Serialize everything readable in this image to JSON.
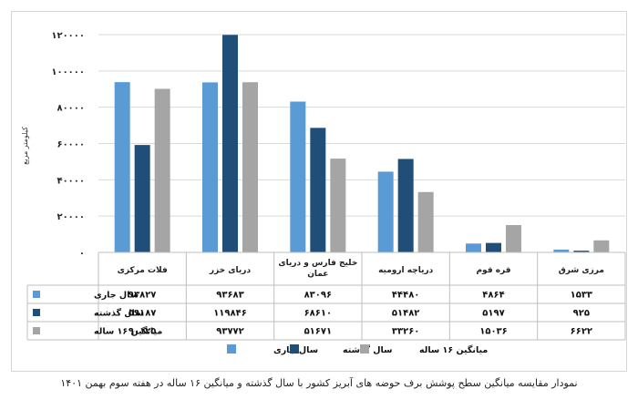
{
  "chart_data": {
    "type": "bar",
    "title": "",
    "ylabel": "کیلومتر مربع",
    "xlabel": "",
    "ylim": [
      0,
      120000
    ],
    "y_ticks": [
      0,
      20000,
      40000,
      60000,
      80000,
      100000,
      120000
    ],
    "y_tick_labels": [
      "۰",
      "۲۰۰۰۰",
      "۴۰۰۰۰",
      "۶۰۰۰۰",
      "۸۰۰۰۰",
      "۱۰۰۰۰۰",
      "۱۲۰۰۰۰"
    ],
    "categories": [
      "مرزی شرق",
      "قره قوم",
      "دریاچه ارومیه",
      "خلیج فارس و دریای عمان",
      "دریای خزر",
      "فلات مرکزی"
    ],
    "category_lines": [
      [
        "مرزی شرق"
      ],
      [
        "قره قوم"
      ],
      [
        "دریاچه ارومیه"
      ],
      [
        "خلیج فارس و دریای",
        "عمان"
      ],
      [
        "دریای خزر"
      ],
      [
        "فلات مرکزی"
      ]
    ],
    "series": [
      {
        "name": "سال جاری",
        "color": "#5b9bd5",
        "values": [
          1533,
          4864,
          44480,
          83096,
          93683,
          93827
        ],
        "labels": [
          "۱۵۳۳",
          "۴۸۶۴",
          "۴۴۴۸۰",
          "۸۳۰۹۶",
          "۹۳۶۸۳",
          "۹۳۸۲۷"
        ]
      },
      {
        "name": "سال گذشته",
        "color": "#1f4e79",
        "values": [
          925,
          5197,
          51482,
          68610,
          119846,
          59187
        ],
        "labels": [
          "۹۲۵",
          "۵۱۹۷",
          "۵۱۴۸۲",
          "۶۸۶۱۰",
          "۱۱۹۸۴۶",
          "۵۹۱۸۷"
        ]
      },
      {
        "name": "میانگین ۱۶ ساله",
        "color": "#a5a5a5",
        "values": [
          6622,
          15036,
          33260,
          51671,
          93772,
          90125
        ],
        "labels": [
          "۶۶۲۲",
          "۱۵۰۳۶",
          "۳۳۲۶۰",
          "۵۱۶۷۱",
          "۹۳۷۷۲",
          "۹۰۱۲۵"
        ]
      }
    ],
    "legend_position": "bottom",
    "grid": true
  },
  "caption": "نمودار مقایسه میانگین سطح پوشش برف حوضه های آبریز  کشور با سال گذشته و  میانگین ۱۶ ساله در هفته سوم بهمن  ۱۴۰۱"
}
